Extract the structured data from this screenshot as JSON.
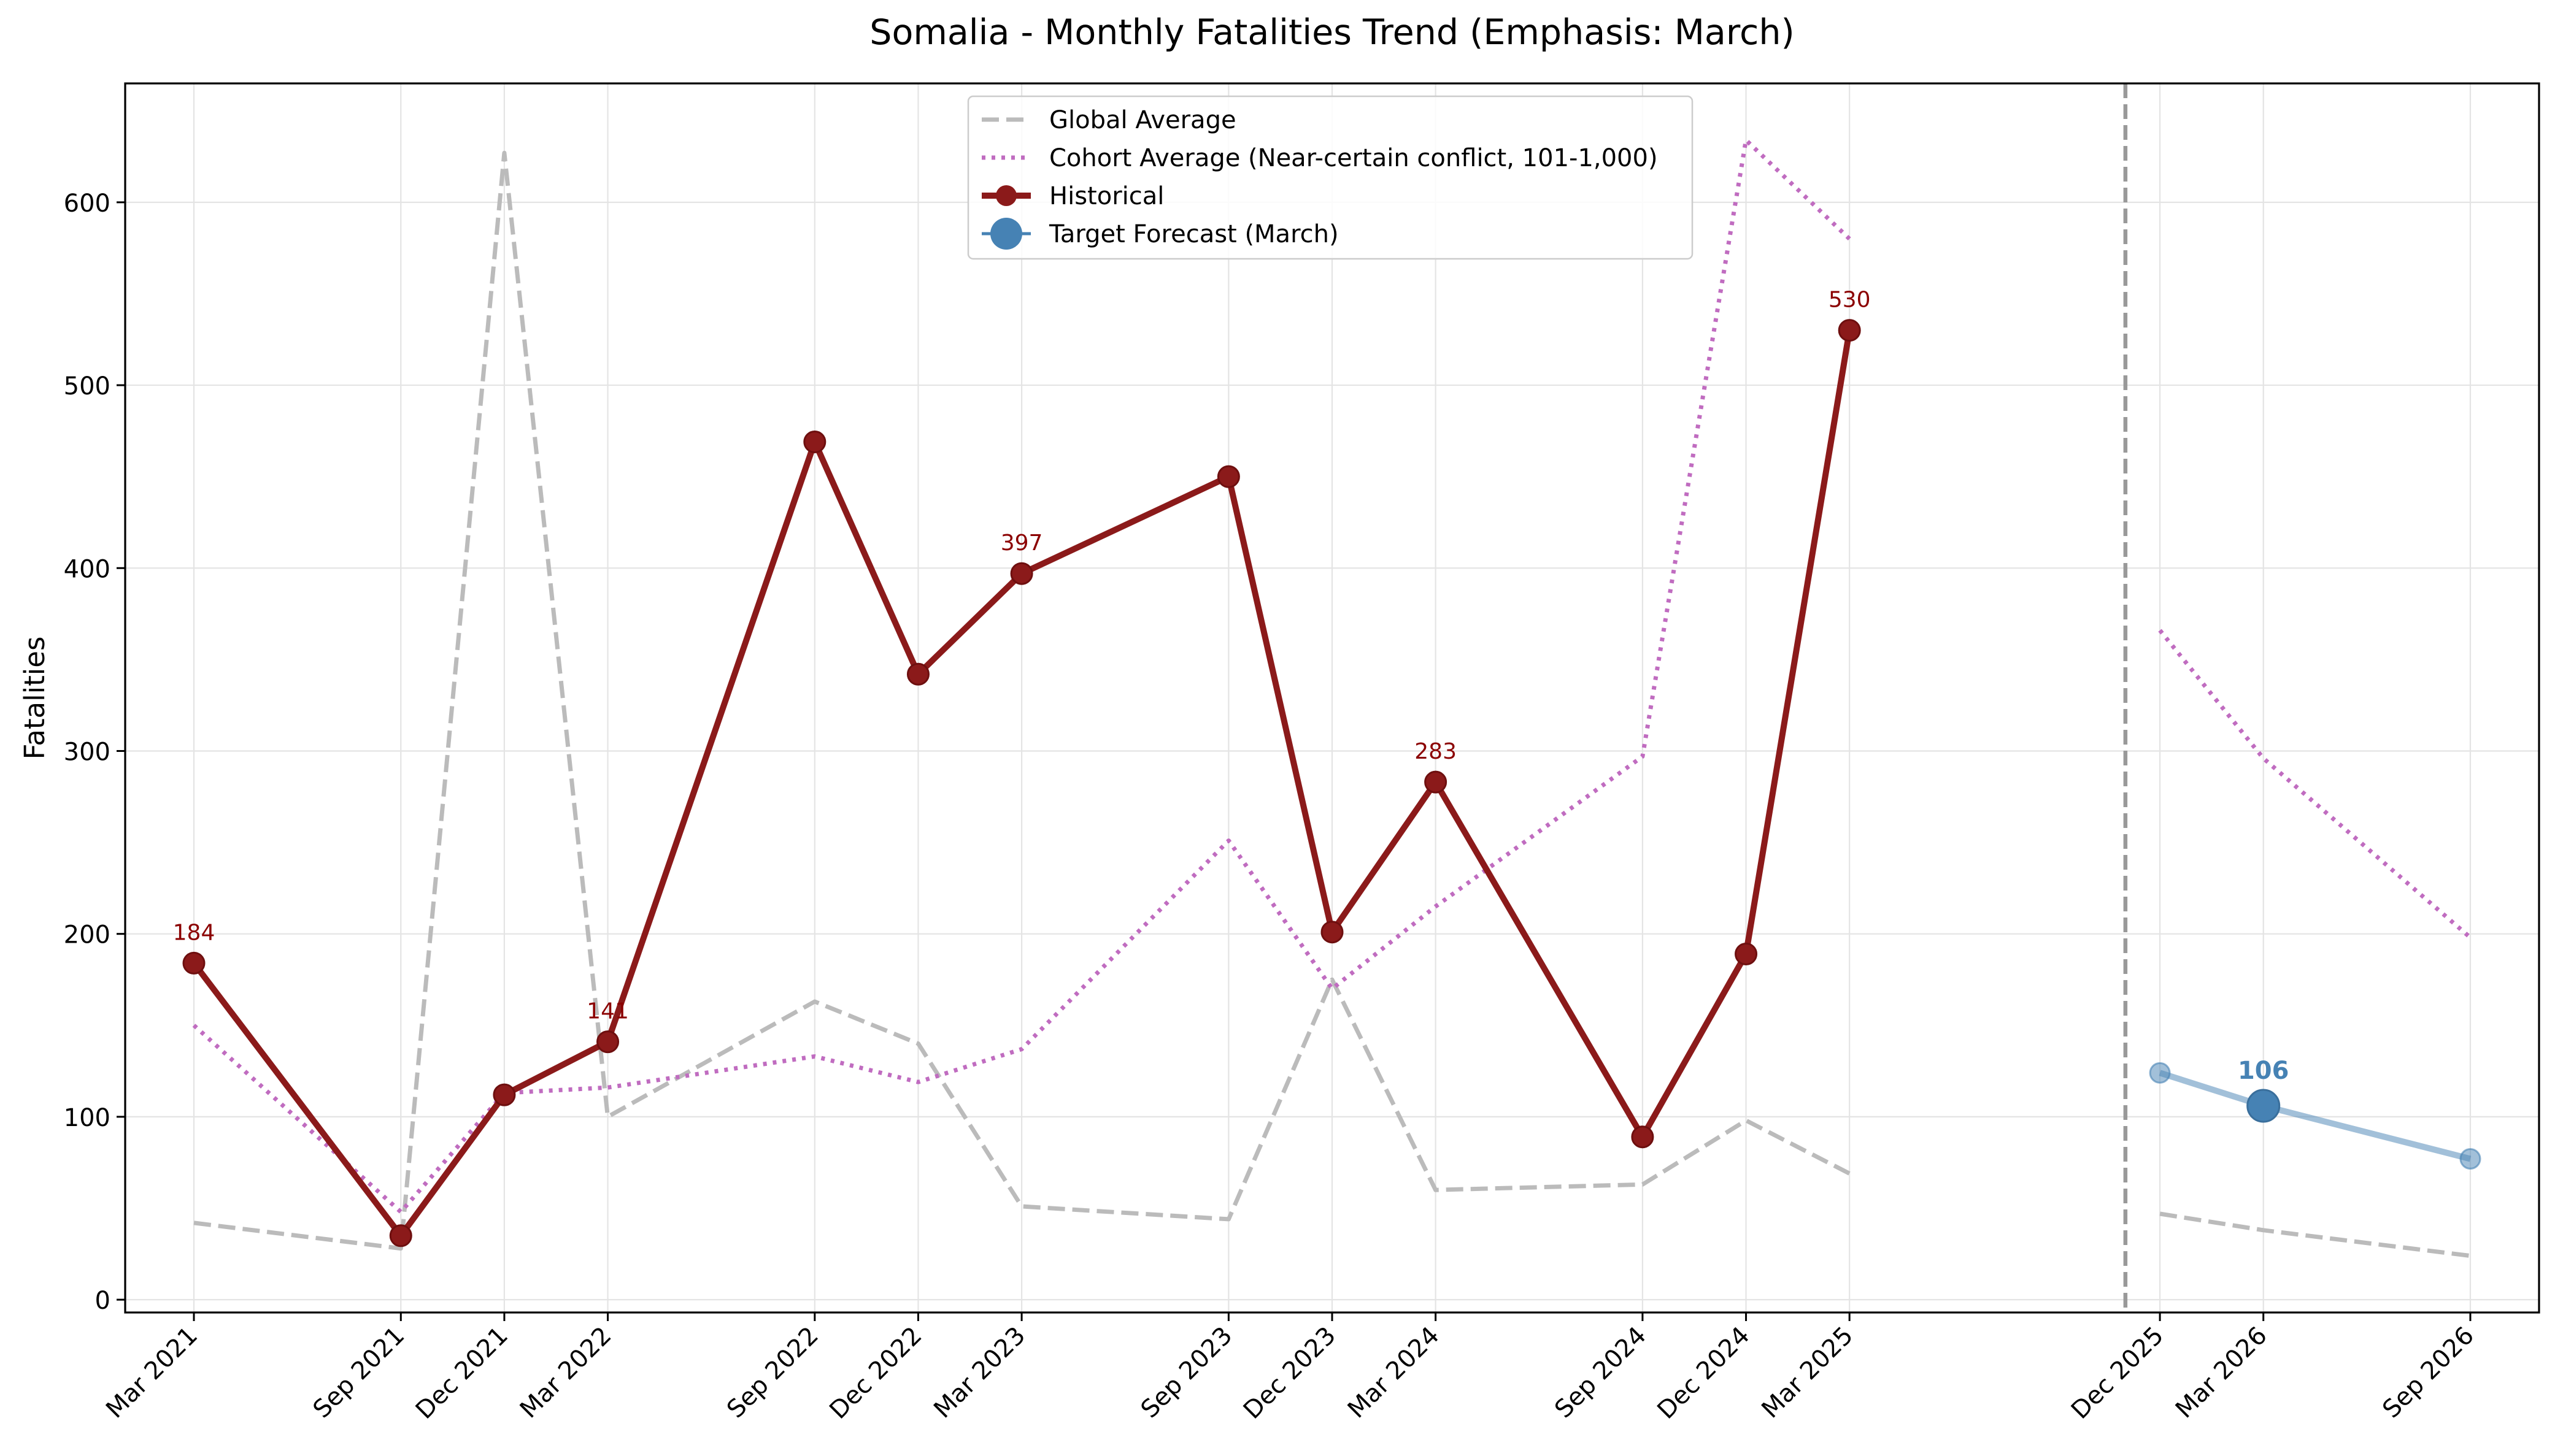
{
  "chart_data": {
    "type": "line",
    "title": "Somalia - Monthly Fatalities Trend (Emphasis: March)",
    "xlabel": "",
    "ylabel": "Fatalities",
    "ylim": [
      -7,
      665
    ],
    "y_ticks": [
      0,
      100,
      200,
      300,
      400,
      500,
      600
    ],
    "grid": true,
    "legend_position": "top-center",
    "forecast_divider": "Nov 2025",
    "x_ticks": [
      "Mar 2021",
      "Sep 2021",
      "Dec 2021",
      "Mar 2022",
      "Sep 2022",
      "Dec 2022",
      "Mar 2023",
      "Sep 2023",
      "Dec 2023",
      "Mar 2024",
      "Sep 2024",
      "Dec 2024",
      "Mar 2025",
      "Dec 2025",
      "Mar 2026",
      "Sep 2026"
    ],
    "series": [
      {
        "name": "Global Average",
        "style": "dashed",
        "color": "#bbbbbb",
        "segments": [
          [
            {
              "x": "Mar 2021",
              "y": 42
            },
            {
              "x": "Sep 2021",
              "y": 28
            },
            {
              "x": "Dec 2021",
              "y": 627
            },
            {
              "x": "Mar 2022",
              "y": 100
            },
            {
              "x": "Sep 2022",
              "y": 163
            },
            {
              "x": "Dec 2022",
              "y": 140
            },
            {
              "x": "Mar 2023",
              "y": 51
            },
            {
              "x": "Sep 2023",
              "y": 44
            },
            {
              "x": "Dec 2023",
              "y": 175
            },
            {
              "x": "Mar 2024",
              "y": 60
            },
            {
              "x": "Sep 2024",
              "y": 63
            },
            {
              "x": "Dec 2024",
              "y": 98
            },
            {
              "x": "Mar 2025",
              "y": 69
            }
          ],
          [
            {
              "x": "Dec 2025",
              "y": 47
            },
            {
              "x": "Mar 2026",
              "y": 38
            },
            {
              "x": "Sep 2026",
              "y": 24
            }
          ]
        ]
      },
      {
        "name": "Cohort Average (Near-certain conflict, 101-1,000)",
        "style": "dotted",
        "color": "#c06cc0",
        "segments": [
          [
            {
              "x": "Mar 2021",
              "y": 150
            },
            {
              "x": "Sep 2021",
              "y": 48
            },
            {
              "x": "Dec 2021",
              "y": 113
            },
            {
              "x": "Mar 2022",
              "y": 116
            },
            {
              "x": "Sep 2022",
              "y": 133
            },
            {
              "x": "Dec 2022",
              "y": 119
            },
            {
              "x": "Mar 2023",
              "y": 137
            },
            {
              "x": "Sep 2023",
              "y": 251
            },
            {
              "x": "Dec 2023",
              "y": 170
            },
            {
              "x": "Mar 2024",
              "y": 215
            },
            {
              "x": "Sep 2024",
              "y": 297
            },
            {
              "x": "Dec 2024",
              "y": 634
            },
            {
              "x": "Mar 2025",
              "y": 580
            }
          ],
          [
            {
              "x": "Dec 2025",
              "y": 366
            },
            {
              "x": "Mar 2026",
              "y": 296
            },
            {
              "x": "Sep 2026",
              "y": 198
            }
          ]
        ]
      },
      {
        "name": "Historical",
        "style": "solid",
        "color": "#8b1a1a",
        "points": [
          {
            "x": "Mar 2021",
            "y": 184
          },
          {
            "x": "Sep 2021",
            "y": 35
          },
          {
            "x": "Dec 2021",
            "y": 112
          },
          {
            "x": "Mar 2022",
            "y": 141
          },
          {
            "x": "Sep 2022",
            "y": 469
          },
          {
            "x": "Dec 2022",
            "y": 342
          },
          {
            "x": "Mar 2023",
            "y": 397
          },
          {
            "x": "Sep 2023",
            "y": 450
          },
          {
            "x": "Dec 2023",
            "y": 201
          },
          {
            "x": "Mar 2024",
            "y": 283
          },
          {
            "x": "Sep 2024",
            "y": 89
          },
          {
            "x": "Dec 2024",
            "y": 189
          },
          {
            "x": "Mar 2025",
            "y": 530
          }
        ],
        "annotations": [
          {
            "x": "Mar 2021",
            "y": 184,
            "label": "184"
          },
          {
            "x": "Mar 2022",
            "y": 141,
            "label": "141"
          },
          {
            "x": "Mar 2023",
            "y": 397,
            "label": "397"
          },
          {
            "x": "Mar 2024",
            "y": 283,
            "label": "283"
          },
          {
            "x": "Mar 2025",
            "y": 530,
            "label": "530"
          }
        ]
      },
      {
        "name": "Target Forecast (March)",
        "style": "solid",
        "color": "#4682b4",
        "points": [
          {
            "x": "Dec 2025",
            "y": 124
          },
          {
            "x": "Mar 2026",
            "y": 106
          },
          {
            "x": "Sep 2026",
            "y": 77
          }
        ],
        "target": {
          "x": "Mar 2026",
          "y": 106,
          "label": "106"
        }
      }
    ]
  }
}
